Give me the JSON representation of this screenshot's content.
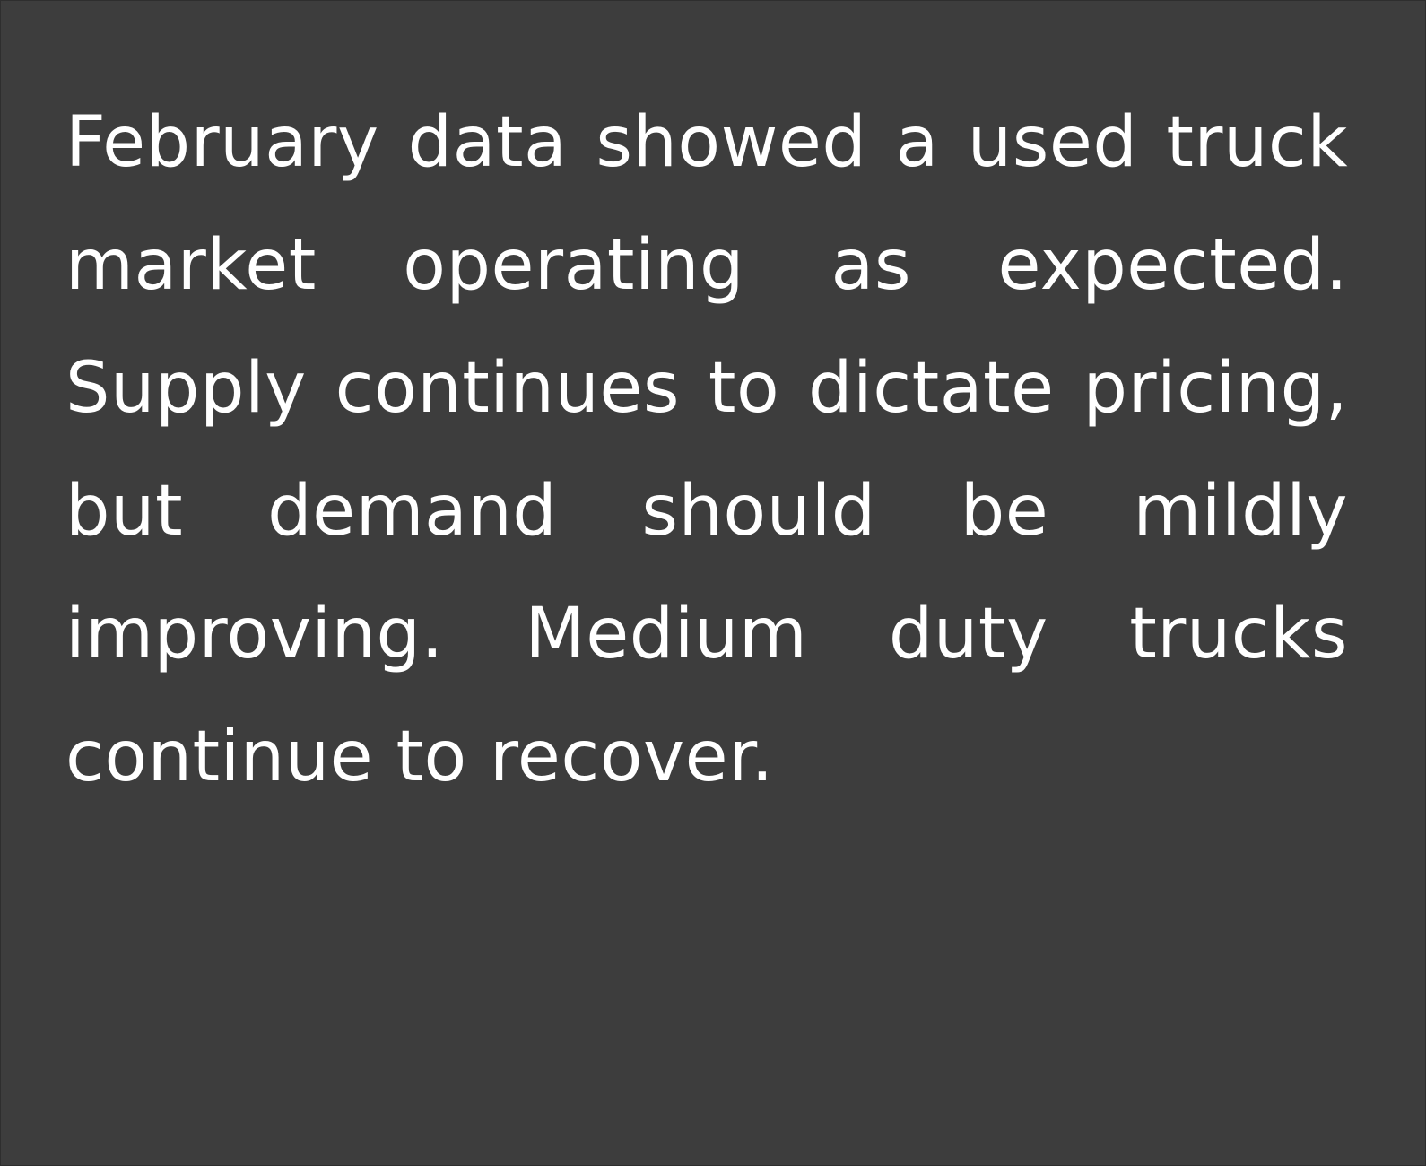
{
  "colors": {
    "background": "#3d3d3d",
    "text": "#ffffff"
  },
  "paragraph": {
    "lines": [
      "February data showed a used truck",
      "market operating as expected.",
      "Supply continues to dictate pricing,",
      "but demand should be mildly",
      "improving. Medium duty trucks",
      "continue to recover."
    ]
  }
}
